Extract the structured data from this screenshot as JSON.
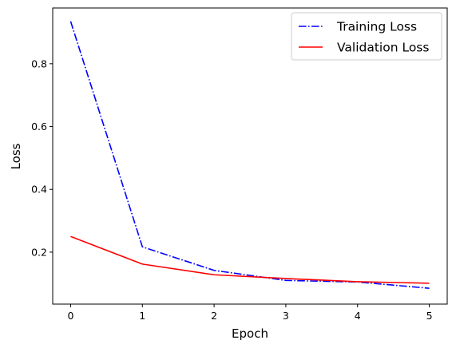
{
  "chart_data": {
    "type": "line",
    "title": "",
    "xlabel": "Epoch",
    "ylabel": "Loss",
    "x": [
      0,
      1,
      2,
      3,
      4,
      5
    ],
    "xlim": [
      -0.25,
      5.25
    ],
    "ylim": [
      0.0346,
      0.9775
    ],
    "xticks": [
      0,
      1,
      2,
      3,
      4,
      5
    ],
    "yticks": [
      0.2,
      0.4,
      0.6,
      0.8
    ],
    "ytick_labels": [
      "0.2",
      "0.4",
      "0.6",
      "0.8"
    ],
    "grid": false,
    "legend_position": "top-right",
    "series": [
      {
        "name": "Training Loss",
        "values": [
          0.935,
          0.217,
          0.142,
          0.11,
          0.105,
          0.085
        ],
        "color": "#0000ff",
        "linestyle": "dashdot"
      },
      {
        "name": "Validation Loss",
        "values": [
          0.25,
          0.162,
          0.128,
          0.116,
          0.106,
          0.101
        ],
        "color": "#ff0000",
        "linestyle": "solid"
      }
    ]
  }
}
